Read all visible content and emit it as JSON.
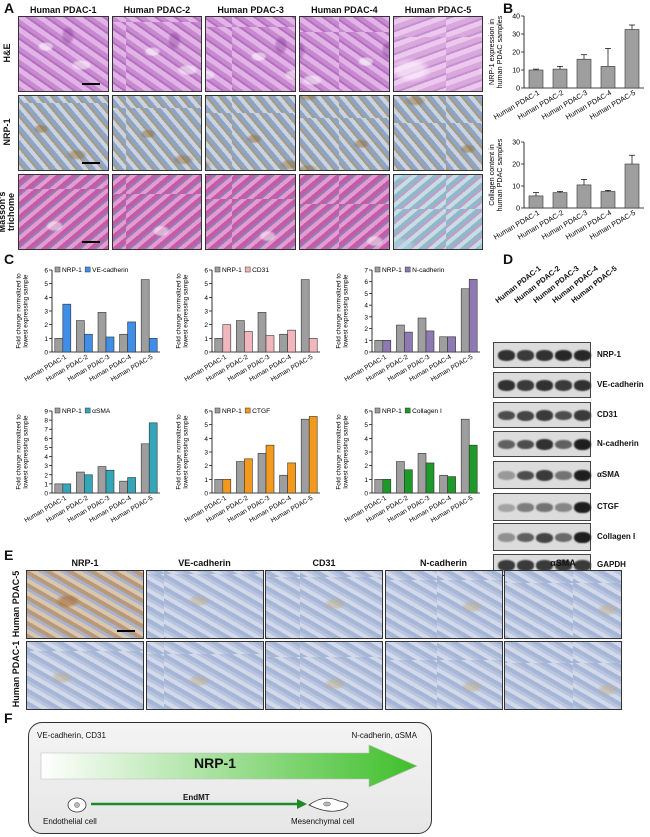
{
  "panels": {
    "A": "A",
    "B": "B",
    "C": "C",
    "D": "D",
    "E": "E",
    "F": "F"
  },
  "samples": [
    "Human PDAC-1",
    "Human PDAC-2",
    "Human PDAC-3",
    "Human PDAC-4",
    "Human PDAC-5"
  ],
  "panelA": {
    "rows": [
      "H&E",
      "NRP-1",
      "Masson's trichome"
    ]
  },
  "panelE": {
    "columns": [
      "NRP-1",
      "VE-cadherin",
      "CD31",
      "N-cadherin",
      "αSMA"
    ],
    "rows": [
      "Human PDAC-5",
      "Human PDAC-1"
    ]
  },
  "panelD": {
    "proteins": [
      "NRP-1",
      "VE-cadherin",
      "CD31",
      "N-cadherin",
      "αSMA",
      "CTGF",
      "Collagen I",
      "GAPDH"
    ],
    "band_intensity": [
      [
        0.85,
        0.8,
        0.85,
        0.9,
        0.9
      ],
      [
        0.85,
        0.8,
        0.85,
        0.8,
        0.85
      ],
      [
        0.7,
        0.75,
        0.8,
        0.7,
        0.8
      ],
      [
        0.6,
        0.7,
        0.85,
        0.6,
        0.95
      ],
      [
        0.3,
        0.7,
        0.8,
        0.5,
        0.95
      ],
      [
        0.25,
        0.45,
        0.5,
        0.4,
        0.95
      ],
      [
        0.35,
        0.6,
        0.75,
        0.55,
        0.95
      ],
      [
        0.8,
        0.8,
        0.8,
        0.8,
        0.8
      ]
    ]
  },
  "panelF": {
    "left_markers": "VE-cadherin, CD31",
    "right_markers": "N-cadherin, αSMA",
    "arrow_label": "NRP-1",
    "process": "EndMT",
    "cell_left": "Endothelial cell",
    "cell_right": "Mesenchymal cell"
  },
  "colors": {
    "gray": "#9e9e9e",
    "blue": "#3f8ee8",
    "pink": "#f2b7bd",
    "purple": "#8e79b3",
    "teal": "#34a6b8",
    "orange": "#f39a1e",
    "green": "#1d9a2a",
    "arrow": "#3fbf2a"
  },
  "chart_data": [
    {
      "type": "bar",
      "categories": [
        "Human PDAC-1",
        "Human PDAC-2",
        "Human PDAC-3",
        "Human PDAC-4",
        "Human PDAC-5"
      ],
      "series": [
        {
          "name": "",
          "values": [
            10,
            10.5,
            16,
            12,
            32.5
          ],
          "errors": [
            0.5,
            1.5,
            2.5,
            10,
            2.5
          ]
        }
      ],
      "ylabel": "NRP-1 expression in human PDAC samples",
      "ylim": [
        0,
        40
      ],
      "yticks": [
        0,
        10,
        20,
        30,
        40
      ]
    },
    {
      "type": "bar",
      "categories": [
        "Human PDAC-1",
        "Human PDAC-2",
        "Human PDAC-3",
        "Human PDAC-4",
        "Human PDAC-5"
      ],
      "series": [
        {
          "name": "",
          "values": [
            5.5,
            7,
            10.5,
            7.5,
            20
          ],
          "errors": [
            1.5,
            0.5,
            2.5,
            0.5,
            4
          ]
        }
      ],
      "ylabel": "Collagen content in human PDAC samples",
      "ylim": [
        0,
        30
      ],
      "yticks": [
        0,
        10,
        20,
        30
      ]
    },
    {
      "type": "bar",
      "categories": [
        "Human PDAC-1",
        "Human PDAC-2",
        "Human PDAC-3",
        "Human PDAC-4",
        "Human PDAC-5"
      ],
      "series": [
        {
          "name": "NRP-1",
          "values": [
            1,
            2.3,
            2.9,
            1.3,
            5.3
          ]
        },
        {
          "name": "VE-cadherin",
          "values": [
            3.5,
            1.3,
            1.1,
            2.2,
            1.0
          ]
        }
      ],
      "ylabel": "Fold change normalized to lowest expressing sample",
      "ylim": [
        0,
        6
      ],
      "yticks": [
        0,
        1,
        2,
        3,
        4,
        5,
        6
      ]
    },
    {
      "type": "bar",
      "categories": [
        "Human PDAC-1",
        "Human PDAC-2",
        "Human PDAC-3",
        "Human PDAC-4",
        "Human PDAC-5"
      ],
      "series": [
        {
          "name": "NRP-1",
          "values": [
            1,
            2.3,
            2.9,
            1.3,
            5.3
          ]
        },
        {
          "name": "CD31",
          "values": [
            2.0,
            1.5,
            1.2,
            1.6,
            1.0
          ]
        }
      ],
      "ylabel": "Fold change normalized to lowest expressing sample",
      "ylim": [
        0,
        6
      ],
      "yticks": [
        0,
        1,
        2,
        3,
        4,
        5,
        6
      ]
    },
    {
      "type": "bar",
      "categories": [
        "Human PDAC-1",
        "Human PDAC-2",
        "Human PDAC-3",
        "Human PDAC-4",
        "Human PDAC-5"
      ],
      "series": [
        {
          "name": "NRP-1",
          "values": [
            1,
            2.3,
            2.9,
            1.3,
            5.4
          ]
        },
        {
          "name": "N-cadherin",
          "values": [
            1.0,
            1.7,
            1.8,
            1.3,
            6.2
          ]
        }
      ],
      "ylabel": "Fold change normalized to lowest expressing sample",
      "ylim": [
        0,
        7
      ],
      "yticks": [
        0,
        1,
        2,
        3,
        4,
        5,
        6,
        7
      ]
    },
    {
      "type": "bar",
      "categories": [
        "Human PDAC-1",
        "Human PDAC-2",
        "Human PDAC-3",
        "Human PDAC-4",
        "Human PDAC-5"
      ],
      "series": [
        {
          "name": "NRP-1",
          "values": [
            1,
            2.3,
            2.9,
            1.3,
            5.4
          ]
        },
        {
          "name": "αSMA",
          "values": [
            1.0,
            2.0,
            2.5,
            1.7,
            7.7
          ]
        }
      ],
      "ylabel": "Fold change normalized to lowest expressing sample",
      "ylim": [
        0,
        9
      ],
      "yticks": [
        0,
        1,
        2,
        3,
        4,
        5,
        6,
        7,
        8,
        9
      ]
    },
    {
      "type": "bar",
      "categories": [
        "Human PDAC-1",
        "Human PDAC-2",
        "Human PDAC-3",
        "Human PDAC-4",
        "Human PDAC-5"
      ],
      "series": [
        {
          "name": "NRP-1",
          "values": [
            1,
            2.3,
            2.9,
            1.3,
            5.4
          ]
        },
        {
          "name": "CTGF",
          "values": [
            1.0,
            2.5,
            3.5,
            2.2,
            5.6
          ]
        }
      ],
      "ylabel": "Fold change normalized to lowest expressing sample",
      "ylim": [
        0,
        6
      ],
      "yticks": [
        0,
        1,
        2,
        3,
        4,
        5,
        6
      ]
    },
    {
      "type": "bar",
      "categories": [
        "Human PDAC-1",
        "Human PDAC-2",
        "Human PDAC-3",
        "Human PDAC-4",
        "Human PDAC-5"
      ],
      "series": [
        {
          "name": "NRP-1",
          "values": [
            1,
            2.3,
            2.9,
            1.3,
            5.4
          ]
        },
        {
          "name": "Collagen I",
          "values": [
            1.0,
            1.7,
            2.2,
            1.2,
            3.5
          ]
        }
      ],
      "ylabel": "Fold change normalized to lowest expressing sample",
      "ylim": [
        0,
        6
      ],
      "yticks": [
        0,
        1,
        2,
        3,
        4,
        5,
        6
      ]
    }
  ]
}
